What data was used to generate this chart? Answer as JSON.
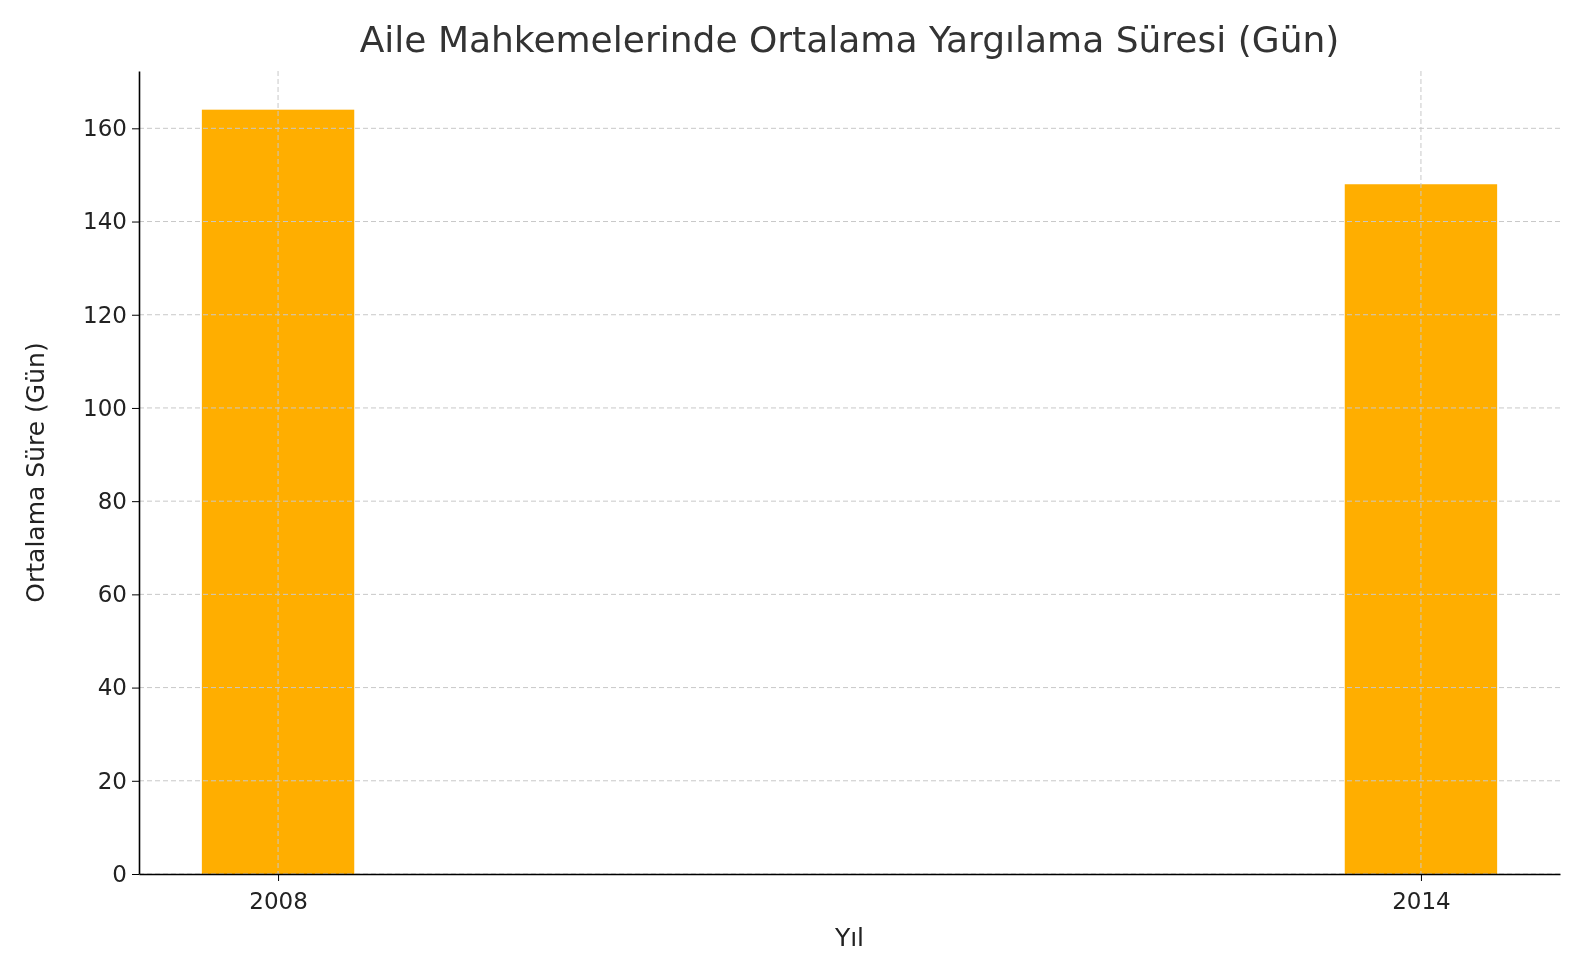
{
  "chart_data": {
    "type": "bar",
    "title": "Aile Mahkemelerinde Ortalama Yargılama Süresi (Gün)",
    "xlabel": "Yıl",
    "ylabel": "Ortalama Süre (Gün)",
    "x": [
      2008,
      2014
    ],
    "series": [
      {
        "color": "#ffae00",
        "values": [
          164,
          148
        ]
      }
    ],
    "xlim": [
      2007.27,
      2014.73
    ],
    "xticks": [
      2008,
      2014
    ],
    "ylim": [
      0,
      172.3
    ],
    "yticks": [
      0,
      20,
      40,
      60,
      80,
      100,
      120,
      140,
      160
    ],
    "grid": true
  }
}
